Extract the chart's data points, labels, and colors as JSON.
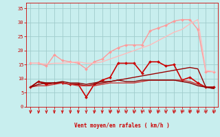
{
  "xlabel": "Vent moyen/en rafales ( km/h )",
  "xlim": [
    -0.5,
    23.5
  ],
  "ylim": [
    0,
    37
  ],
  "yticks": [
    0,
    5,
    10,
    15,
    20,
    25,
    30,
    35
  ],
  "xticks": [
    0,
    1,
    2,
    3,
    4,
    5,
    6,
    7,
    8,
    9,
    10,
    11,
    12,
    13,
    14,
    15,
    16,
    17,
    18,
    19,
    20,
    21,
    22,
    23
  ],
  "bg_color": "#c8eeee",
  "grid_color": "#a0cccc",
  "lines": [
    {
      "x": [
        0,
        1,
        2,
        3,
        4,
        5,
        6,
        7,
        8,
        9,
        10,
        11,
        12,
        13,
        14,
        15,
        16,
        17,
        18,
        19,
        20,
        21,
        22,
        23
      ],
      "y": [
        15.5,
        15.5,
        14.5,
        18.5,
        16.5,
        16.0,
        15.5,
        13.5,
        16.0,
        17.0,
        19.5,
        21.0,
        22.0,
        22.0,
        22.0,
        27.0,
        28.0,
        29.0,
        30.5,
        31.0,
        31.0,
        27.5,
        12.5,
        12.5
      ],
      "color": "#ff9999",
      "lw": 1.0,
      "marker": "D",
      "ms": 2.0
    },
    {
      "x": [
        0,
        1,
        2,
        3,
        4,
        5,
        6,
        7,
        8,
        9,
        10,
        11,
        12,
        13,
        14,
        15,
        16,
        17,
        18,
        19,
        20,
        21,
        22,
        23
      ],
      "y": [
        7.0,
        9.0,
        8.0,
        8.5,
        8.5,
        8.0,
        8.0,
        3.5,
        8.0,
        9.5,
        10.5,
        15.5,
        15.5,
        15.5,
        12.0,
        16.0,
        16.0,
        14.5,
        15.0,
        9.5,
        10.5,
        8.5,
        7.0,
        7.0
      ],
      "color": "#cc0000",
      "lw": 1.2,
      "marker": "D",
      "ms": 2.0
    },
    {
      "x": [
        0,
        1,
        2,
        3,
        4,
        5,
        6,
        7,
        8,
        9,
        10,
        11,
        12,
        13,
        14,
        15,
        16,
        17,
        18,
        19,
        20,
        21,
        22,
        23
      ],
      "y": [
        15.5,
        15.5,
        15.2,
        15.5,
        15.5,
        15.8,
        16.0,
        15.5,
        15.5,
        16.0,
        17.0,
        18.0,
        19.0,
        20.0,
        21.0,
        22.0,
        23.5,
        25.0,
        26.5,
        27.5,
        29.5,
        31.0,
        13.0,
        12.5
      ],
      "color": "#ffbbbb",
      "lw": 1.0,
      "marker": null,
      "ms": 0
    },
    {
      "x": [
        0,
        1,
        2,
        3,
        4,
        5,
        6,
        7,
        8,
        9,
        10,
        11,
        12,
        13,
        14,
        15,
        16,
        17,
        18,
        19,
        20,
        21,
        22,
        23
      ],
      "y": [
        7.0,
        9.0,
        8.5,
        8.5,
        8.5,
        8.0,
        8.0,
        7.5,
        8.0,
        8.5,
        9.0,
        9.5,
        10.0,
        10.5,
        11.0,
        11.5,
        12.0,
        12.5,
        13.0,
        13.5,
        14.0,
        13.5,
        7.0,
        7.0
      ],
      "color": "#990000",
      "lw": 1.0,
      "marker": null,
      "ms": 0
    },
    {
      "x": [
        0,
        1,
        2,
        3,
        4,
        5,
        6,
        7,
        8,
        9,
        10,
        11,
        12,
        13,
        14,
        15,
        16,
        17,
        18,
        19,
        20,
        21,
        22,
        23
      ],
      "y": [
        7.0,
        7.5,
        7.5,
        8.0,
        8.5,
        8.0,
        7.5,
        7.5,
        7.5,
        8.0,
        8.5,
        8.5,
        8.5,
        8.5,
        9.0,
        9.5,
        9.5,
        9.5,
        9.5,
        9.5,
        9.0,
        8.0,
        7.0,
        6.5
      ],
      "color": "#cc3333",
      "lw": 1.0,
      "marker": null,
      "ms": 0
    },
    {
      "x": [
        0,
        1,
        2,
        3,
        4,
        5,
        6,
        7,
        8,
        9,
        10,
        11,
        12,
        13,
        14,
        15,
        16,
        17,
        18,
        19,
        20,
        21,
        22,
        23
      ],
      "y": [
        7.0,
        8.0,
        8.5,
        8.5,
        9.0,
        8.5,
        8.5,
        8.0,
        8.5,
        9.0,
        9.0,
        9.5,
        9.0,
        9.0,
        9.5,
        9.5,
        9.5,
        9.5,
        9.5,
        9.0,
        8.5,
        7.5,
        7.0,
        6.5
      ],
      "color": "#880000",
      "lw": 1.0,
      "marker": null,
      "ms": 0
    }
  ],
  "arrow_color": "#cc0000",
  "tick_color": "#cc0000",
  "xlabel_color": "#cc0000"
}
